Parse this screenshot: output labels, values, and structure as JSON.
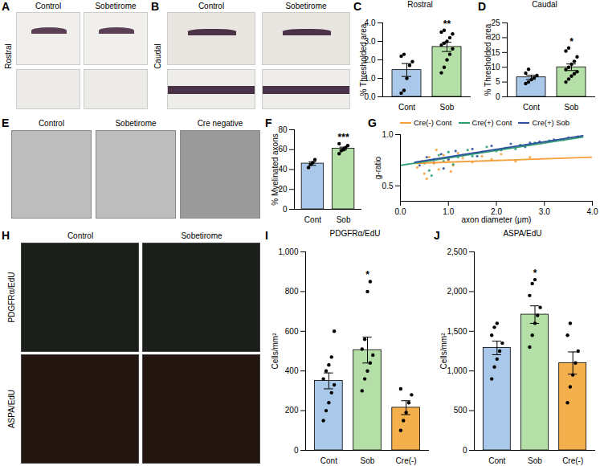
{
  "chart_data": [
    {
      "panel": "C",
      "type": "bar",
      "title": "Rostral",
      "y_label": "% Thresholded area",
      "categories": [
        "Cont",
        "Sob"
      ],
      "values": [
        1.45,
        2.7
      ],
      "errors": [
        0.35,
        0.25
      ],
      "colors": [
        "#a9c8ea",
        "#b4dfa6"
      ],
      "points": [
        [
          0.2,
          0.35,
          1.0,
          1.7,
          1.9,
          2.2,
          2.3
        ],
        [
          1.3,
          1.6,
          2.0,
          2.3,
          2.6,
          2.8,
          2.9,
          3.0,
          3.2,
          3.4,
          3.5,
          3.6
        ]
      ],
      "annotations": [
        {
          "category": "Sob",
          "text": "**"
        }
      ],
      "ylim": [
        0,
        4
      ],
      "yticks": [
        0,
        1,
        2,
        3,
        4
      ]
    },
    {
      "panel": "D",
      "type": "bar",
      "title": "Caudal",
      "y_label": "% Thresholded area",
      "categories": [
        "Cont",
        "Sob"
      ],
      "values": [
        6.6,
        10.0
      ],
      "errors": [
        0.7,
        1.1
      ],
      "colors": [
        "#a9c8ea",
        "#b4dfa6"
      ],
      "points": [
        [
          4.5,
          5.0,
          5.8,
          6.5,
          7.2,
          8.0,
          9.3
        ],
        [
          5.0,
          6.0,
          7.0,
          7.8,
          8.5,
          9.2,
          10.0,
          11.0,
          12.0,
          13.5,
          15.5,
          16.5
        ]
      ],
      "annotations": [
        {
          "category": "Sob",
          "text": "*"
        }
      ],
      "ylim": [
        0,
        25
      ],
      "yticks": [
        0,
        5,
        10,
        15,
        20,
        25
      ]
    },
    {
      "panel": "F",
      "type": "bar",
      "y_label": "% Myelinated axons",
      "categories": [
        "Cont",
        "Sob"
      ],
      "values": [
        46,
        61
      ],
      "errors": [
        1.8,
        1.5
      ],
      "colors": [
        "#a9c8ea",
        "#b4dfa6"
      ],
      "points": [
        [
          42,
          45,
          47,
          50
        ],
        [
          56,
          59,
          60,
          62,
          64,
          66
        ]
      ],
      "annotations": [
        {
          "category": "Sob",
          "text": "***"
        }
      ],
      "ylim": [
        0,
        80
      ],
      "yticks": [
        0,
        20,
        40,
        60,
        80
      ]
    },
    {
      "panel": "G",
      "type": "scatter",
      "x_label": "axon diameter (μm)",
      "y_label": "g-ratio",
      "xlim": [
        0,
        4
      ],
      "xticks": [
        0,
        1,
        2,
        3,
        4
      ],
      "ylim": [
        0.35,
        1.0
      ],
      "yticks": [
        {
          "value": 0.5,
          "label": "0.5"
        },
        {
          "value": 1.0,
          "label": "1.0"
        }
      ],
      "series": [
        {
          "name": "Cre(-) Cont",
          "color": "#f5a03a",
          "x": [
            0.35,
            0.45,
            0.5,
            0.6,
            0.7,
            0.8,
            0.9,
            1.0,
            1.1,
            1.2,
            1.3,
            1.5,
            1.7,
            1.9,
            2.1,
            2.4,
            2.7,
            0.55,
            0.75,
            1.05
          ],
          "y": [
            0.68,
            0.74,
            0.62,
            0.78,
            0.72,
            0.66,
            0.8,
            0.75,
            0.7,
            0.82,
            0.77,
            0.73,
            0.79,
            0.76,
            0.81,
            0.74,
            0.78,
            0.57,
            0.85,
            0.64
          ],
          "fit": {
            "x": [
              0.3,
              4.0
            ],
            "y": [
              0.72,
              0.78
            ]
          }
        },
        {
          "name": "Cre(+) Cont",
          "color": "#2a9d6e",
          "x": [
            0.5,
            0.6,
            0.7,
            0.8,
            0.9,
            1.0,
            1.2,
            1.4,
            1.6,
            1.8,
            2.0,
            2.2,
            2.5,
            2.8,
            3.1,
            3.4,
            0.65,
            1.1,
            1.5,
            2.4
          ],
          "y": [
            0.72,
            0.65,
            0.76,
            0.8,
            0.74,
            0.83,
            0.78,
            0.85,
            0.82,
            0.88,
            0.84,
            0.87,
            0.9,
            0.92,
            0.94,
            0.95,
            0.6,
            0.71,
            0.79,
            0.86
          ],
          "fit": {
            "x": [
              0.0,
              3.8
            ],
            "y": [
              0.7,
              0.975
            ]
          }
        },
        {
          "name": "Cre(+) Sob",
          "color": "#2f4f9e",
          "x": [
            0.4,
            0.55,
            0.7,
            0.85,
            1.0,
            1.15,
            1.3,
            1.5,
            1.7,
            1.9,
            2.1,
            2.3,
            2.6,
            2.9,
            3.2,
            3.5,
            3.7,
            0.9,
            1.6,
            2.7
          ],
          "y": [
            0.7,
            0.78,
            0.73,
            0.81,
            0.76,
            0.84,
            0.8,
            0.86,
            0.83,
            0.89,
            0.85,
            0.91,
            0.88,
            0.93,
            0.95,
            0.97,
            0.98,
            0.67,
            0.79,
            0.92
          ],
          "fit": {
            "x": [
              0.3,
              3.8
            ],
            "y": [
              0.73,
              0.99
            ]
          }
        }
      ]
    },
    {
      "panel": "I",
      "type": "bar",
      "title": "PDGFRα/EdU",
      "y_label": "Cells/mm²",
      "categories": [
        "Cont",
        "Sob",
        "Cre(-)"
      ],
      "values": [
        350,
        505,
        215
      ],
      "errors": [
        40,
        65,
        35
      ],
      "colors": [
        "#a9c8ea",
        "#b4dfa6",
        "#f5b04e"
      ],
      "points": [
        [
          150,
          200,
          240,
          290,
          330,
          360,
          400,
          430,
          470,
          600
        ],
        [
          300,
          360,
          400,
          440,
          480,
          510,
          560,
          800,
          850
        ],
        [
          100,
          150,
          190,
          240,
          280,
          310
        ]
      ],
      "annotations": [
        {
          "category": "Sob",
          "text": "*"
        }
      ],
      "ylim": [
        0,
        1000
      ],
      "yticks": [
        0,
        200,
        400,
        600,
        800,
        1000
      ]
    },
    {
      "panel": "J",
      "type": "bar",
      "title": "ASPA/EdU",
      "y_label": "Cells/mm²",
      "categories": [
        "Cont",
        "Sob",
        "Cre(-)"
      ],
      "values": [
        1290,
        1710,
        1100
      ],
      "errors": [
        85,
        110,
        140
      ],
      "colors": [
        "#a9c8ea",
        "#b4dfa6",
        "#f5b04e"
      ],
      "points": [
        [
          900,
          1050,
          1150,
          1250,
          1350,
          1450,
          1550,
          1600
        ],
        [
          1300,
          1450,
          1600,
          1700,
          1800,
          1950,
          2100,
          2150
        ],
        [
          600,
          800,
          950,
          1100,
          1250,
          1450,
          1600
        ]
      ],
      "annotations": [
        {
          "category": "Sob",
          "text": "*"
        }
      ],
      "ylim": [
        0,
        2500
      ],
      "yticks": [
        0,
        500,
        1000,
        1500,
        2000,
        2500
      ]
    }
  ],
  "images": [
    {
      "panel": "A",
      "row_label": "Rostral",
      "columns": [
        "Control",
        "Sobetirome"
      ]
    },
    {
      "panel": "B",
      "row_label": "Caudal",
      "columns": [
        "Control",
        "Sobetirome"
      ]
    },
    {
      "panel": "E",
      "columns": [
        "Control",
        "Sobetirome",
        "Cre negative"
      ]
    },
    {
      "panel": "H",
      "columns": [
        "Control",
        "Sobetirome"
      ],
      "row_labels": [
        "PDGFRα/EdU",
        "ASPA/EdU"
      ]
    }
  ]
}
